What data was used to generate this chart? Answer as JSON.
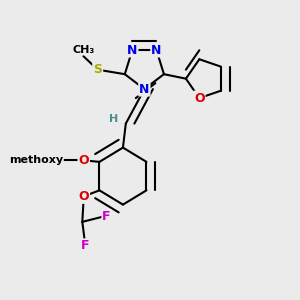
{
  "bg_color": "#ebebeb",
  "bond_color": "#000000",
  "bond_width": 1.5,
  "dbo": 0.012,
  "atom_colors": {
    "N": "#0000ee",
    "O": "#dd0000",
    "S": "#aaaa00",
    "F": "#cc00cc",
    "C": "#000000",
    "H": "#4a9090"
  },
  "fs": 9,
  "fs_small": 8
}
